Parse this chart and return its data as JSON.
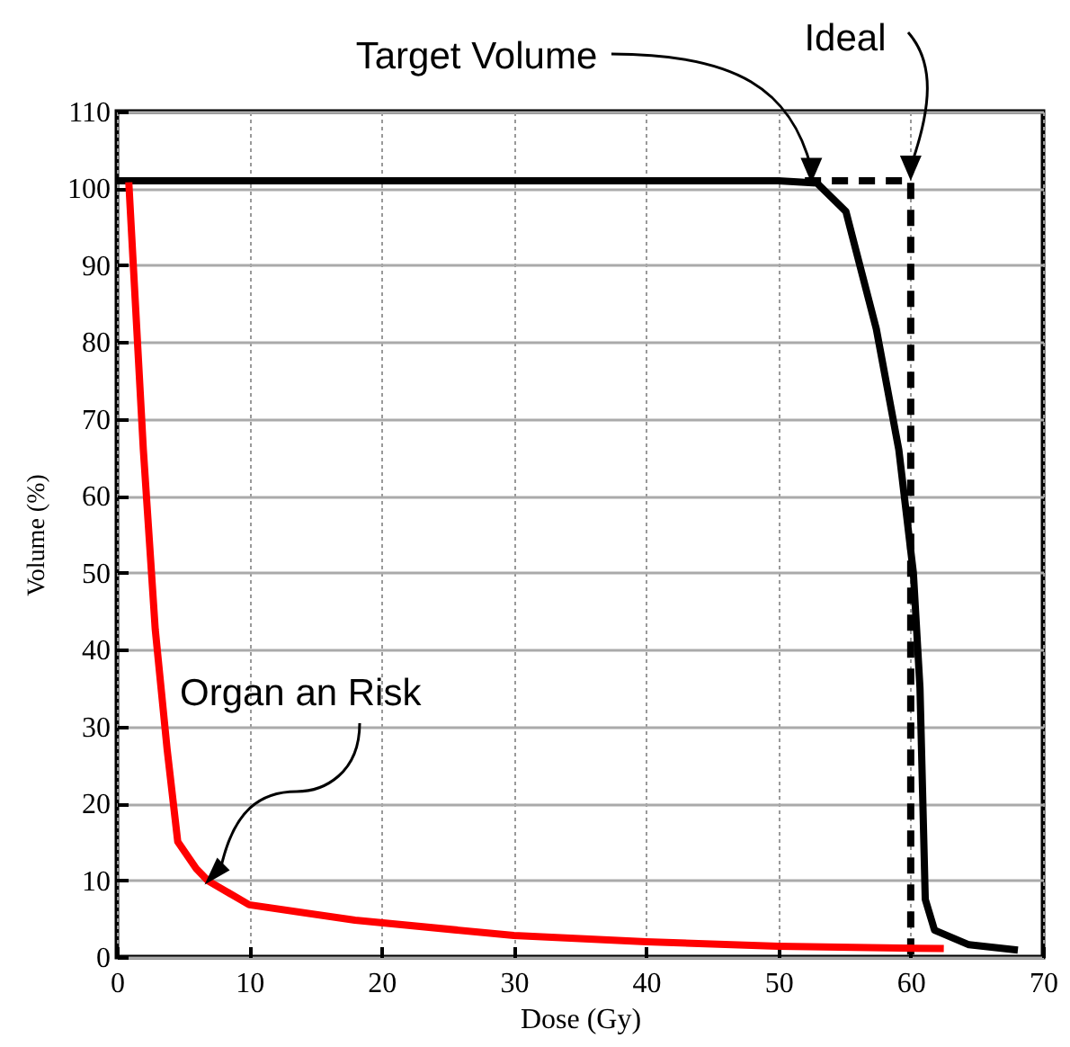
{
  "chart_data": {
    "type": "line",
    "xlabel": "Dose (Gy)",
    "ylabel": "Volume (%)",
    "xlim": [
      0,
      70
    ],
    "xticks": [
      0,
      10,
      20,
      30,
      40,
      50,
      60,
      70
    ],
    "ylim": [
      0,
      110
    ],
    "yticks": [
      0,
      10,
      20,
      30,
      40,
      50,
      60,
      70,
      80,
      90,
      100,
      110
    ],
    "grid": true,
    "marker": "none",
    "series": [
      {
        "name": "Target Volume",
        "color": "#000000",
        "line_style": "solid",
        "x": [
          0,
          10,
          20,
          30,
          40,
          50,
          52.9,
          55.1,
          57.4,
          59.1,
          60.2,
          60.7,
          61.1,
          61.8,
          64.4,
          68.1
        ],
        "values": [
          101,
          101,
          101,
          101,
          101,
          101,
          100.7,
          97,
          81.7,
          66,
          50,
          35,
          7.5,
          3.5,
          1.6,
          0.9
        ]
      },
      {
        "name": "Ideal",
        "color": "#000000",
        "line_style": "dashed",
        "x": [
          52,
          60,
          60
        ],
        "values": [
          101,
          101,
          0
        ]
      },
      {
        "name": "Organ an Risk",
        "color": "#ff0000",
        "line_style": "solid",
        "x": [
          0.9,
          2.0,
          2.9,
          3.8,
          4.6,
          6.0,
          6.9,
          10,
          18,
          30,
          40,
          50,
          62.5
        ],
        "values": [
          100.8,
          66,
          42.6,
          27,
          15,
          11.5,
          9.9,
          6.8,
          4.8,
          2.8,
          2,
          1.4,
          1.1
        ]
      }
    ]
  }
}
